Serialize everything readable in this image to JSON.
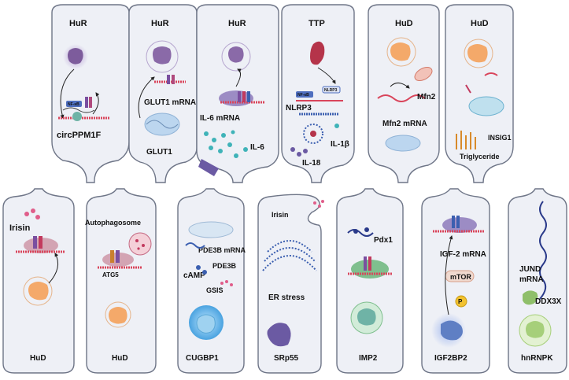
{
  "panels": [
    {
      "id": "p1",
      "protein": "HuR",
      "labels": [
        "circPPM1F",
        "NF-κB"
      ]
    },
    {
      "id": "p2",
      "protein": "HuR",
      "labels": [
        "GLUT1 mRNA",
        "GLUT1"
      ]
    },
    {
      "id": "p3",
      "protein": "HuR",
      "labels": [
        "IL-6 mRNA",
        "IL-6"
      ]
    },
    {
      "id": "p4",
      "protein": "TTP",
      "labels": [
        "NLRP3",
        "NF-κB",
        "NLRP3",
        "IL-1β",
        "IL-18"
      ]
    },
    {
      "id": "p5",
      "protein": "HuD",
      "labels": [
        "Mfn2",
        "Mfn2 mRNA"
      ]
    },
    {
      "id": "p6",
      "protein": "HuD",
      "labels": [
        "INSIG1",
        "Triglyceride"
      ]
    },
    {
      "id": "p7",
      "protein": "HuD",
      "labels": [
        "Irisin"
      ]
    },
    {
      "id": "p8",
      "protein": "HuD",
      "labels": [
        "Autophagosome",
        "ATG5"
      ]
    },
    {
      "id": "p9",
      "protein": "CUGBP1",
      "labels": [
        "PDE3B mRNA",
        "PDE3B",
        "cAMP",
        "GSIS"
      ]
    },
    {
      "id": "p10",
      "protein": "SRp55",
      "labels": [
        "Irisin",
        "ER stress"
      ]
    },
    {
      "id": "p11",
      "protein": "IMP2",
      "labels": [
        "Pdx1"
      ]
    },
    {
      "id": "p12",
      "protein": "IGF2BP2",
      "labels": [
        "IGF-2 mRNA",
        "mTOR",
        "P"
      ]
    },
    {
      "id": "p13",
      "protein": "hnRNPK",
      "labels": [
        "JUND",
        "mRNA",
        "DDX3X"
      ]
    }
  ],
  "colors": {
    "cell_fill": "#eef0f6",
    "cell_stroke": "#6e7587",
    "hur_purple": "#8a6aa8",
    "hud_orange": "#f4a96a",
    "ttp_red": "#b5344a",
    "cugbp1_blue": "#8fc6ea",
    "srp55_purple": "#6b5aa3",
    "imp2_teal": "#6fb3a6",
    "igf2bp2_blue": "#5f7fc4",
    "hnrnpk_green": "#a6cf7a",
    "rna_red": "#d9455b",
    "rna_blue": "#3b5fb0",
    "vesicle_teal": "#3fb3b8",
    "irisin_pink": "#e05d8a"
  },
  "icons": [
    "protein-blob-icon",
    "mrna-strand-icon",
    "ribosome-icon",
    "mitochondrion-icon",
    "er-icon",
    "vesicle-icon",
    "nucleus-icon",
    "phosphate-icon",
    "arrow-icon",
    "inhibition-bar-icon"
  ]
}
